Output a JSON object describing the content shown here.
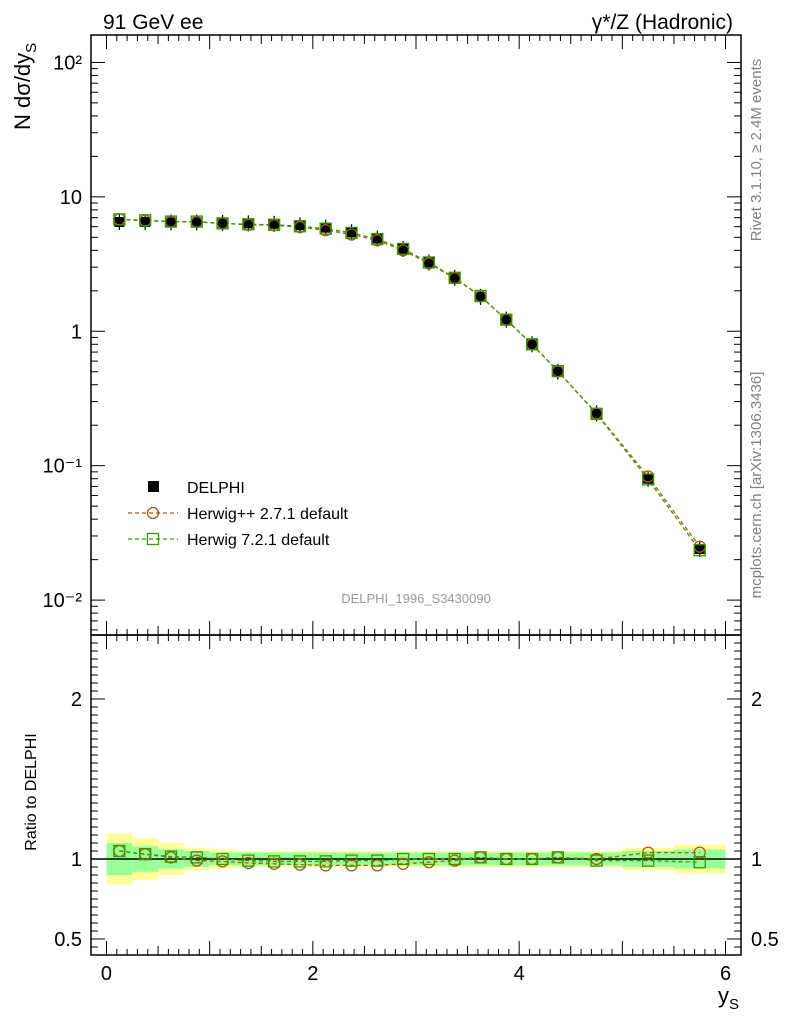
{
  "header": {
    "left": "91 GeV ee",
    "right": "γ*/Z (Hadronic)"
  },
  "side_labels": {
    "upper": "Rivet 3.1.10, ≥ 2.4M events",
    "lower": "mcplots.cern.ch [arXiv:1306.3436]"
  },
  "watermark": "DELPHI_1996_S3430090",
  "chart_data": [
    {
      "type": "line",
      "panel": "main",
      "ylabel": "N dσ/dy_S",
      "yscale": "log",
      "xlim": [
        -0.15,
        6.15
      ],
      "ylim": [
        0.0055,
        160
      ],
      "y_tick_labels": [
        "10⁻²",
        "10⁻¹",
        "1",
        "10",
        "10²"
      ],
      "legend_position": "lower-left",
      "x": [
        0.125,
        0.375,
        0.625,
        0.875,
        1.125,
        1.375,
        1.625,
        1.875,
        2.125,
        2.375,
        2.625,
        2.875,
        3.125,
        3.375,
        3.625,
        3.875,
        4.125,
        4.375,
        4.75,
        5.25,
        5.75
      ],
      "series": [
        {
          "name": "DELPHI",
          "color": "#000000",
          "marker": "filled-square",
          "values": [
            6.5,
            6.5,
            6.45,
            6.45,
            6.4,
            6.35,
            6.3,
            6.15,
            5.9,
            5.45,
            4.9,
            4.1,
            3.25,
            2.5,
            1.8,
            1.22,
            0.8,
            0.5,
            0.245,
            0.08,
            0.024
          ]
        },
        {
          "name": "Herwig++ 2.7.1 default",
          "color": "#b35900",
          "marker": "open-circle",
          "values": [
            6.8,
            6.65,
            6.55,
            6.5,
            6.35,
            6.2,
            6.15,
            5.95,
            5.65,
            5.25,
            4.75,
            4.0,
            3.2,
            2.48,
            1.82,
            1.22,
            0.8,
            0.505,
            0.245,
            0.083,
            0.025
          ]
        },
        {
          "name": "Herwig 7.2.1 default",
          "color": "#339900",
          "marker": "open-square",
          "values": [
            6.8,
            6.7,
            6.55,
            6.55,
            6.35,
            6.25,
            6.2,
            6.05,
            5.8,
            5.4,
            4.85,
            4.1,
            3.25,
            2.5,
            1.83,
            1.22,
            0.8,
            0.505,
            0.243,
            0.079,
            0.0235
          ]
        }
      ]
    },
    {
      "type": "line",
      "panel": "ratio",
      "xlabel": "y_S",
      "ylabel": "Ratio to DELPHI",
      "xlim": [
        -0.15,
        6.15
      ],
      "ylim": [
        0.4,
        2.4
      ],
      "x_tick_labels": [
        "0",
        "2",
        "4",
        "6"
      ],
      "y_tick_labels": [
        "0.5",
        "1",
        "2"
      ],
      "x": [
        0.125,
        0.375,
        0.625,
        0.875,
        1.125,
        1.375,
        1.625,
        1.875,
        2.125,
        2.375,
        2.625,
        2.875,
        3.125,
        3.375,
        3.625,
        3.875,
        4.125,
        4.375,
        4.75,
        5.25,
        5.75
      ],
      "bin_edges": [
        0,
        0.25,
        0.5,
        0.75,
        1.0,
        1.25,
        1.5,
        1.75,
        2.0,
        2.25,
        2.5,
        2.75,
        3.0,
        3.25,
        3.5,
        3.75,
        4.0,
        4.25,
        4.5,
        5.0,
        5.5,
        6.0
      ],
      "band_inner": [
        0.1,
        0.08,
        0.06,
        0.05,
        0.04,
        0.04,
        0.04,
        0.04,
        0.04,
        0.04,
        0.04,
        0.04,
        0.04,
        0.04,
        0.04,
        0.04,
        0.04,
        0.04,
        0.04,
        0.05,
        0.06
      ],
      "band_outer": [
        0.16,
        0.13,
        0.1,
        0.07,
        0.06,
        0.05,
        0.05,
        0.05,
        0.05,
        0.05,
        0.05,
        0.05,
        0.05,
        0.05,
        0.05,
        0.05,
        0.05,
        0.05,
        0.05,
        0.07,
        0.09
      ],
      "series": [
        {
          "name": "Herwig++ 2.7.1 default",
          "color": "#b35900",
          "marker": "open-circle",
          "values": [
            1.05,
            1.03,
            1.01,
            0.99,
            0.985,
            0.975,
            0.97,
            0.965,
            0.96,
            0.96,
            0.96,
            0.97,
            0.98,
            0.99,
            1.01,
            1.0,
            1.0,
            1.01,
            1.0,
            1.04,
            1.04
          ]
        },
        {
          "name": "Herwig 7.2.1 default",
          "color": "#339900",
          "marker": "open-square",
          "values": [
            1.05,
            1.03,
            1.015,
            1.01,
            1.0,
            0.99,
            0.985,
            0.985,
            0.985,
            0.99,
            0.99,
            1.0,
            1.0,
            1.0,
            1.01,
            1.0,
            1.0,
            1.01,
            0.99,
            0.99,
            0.98
          ]
        }
      ]
    }
  ]
}
